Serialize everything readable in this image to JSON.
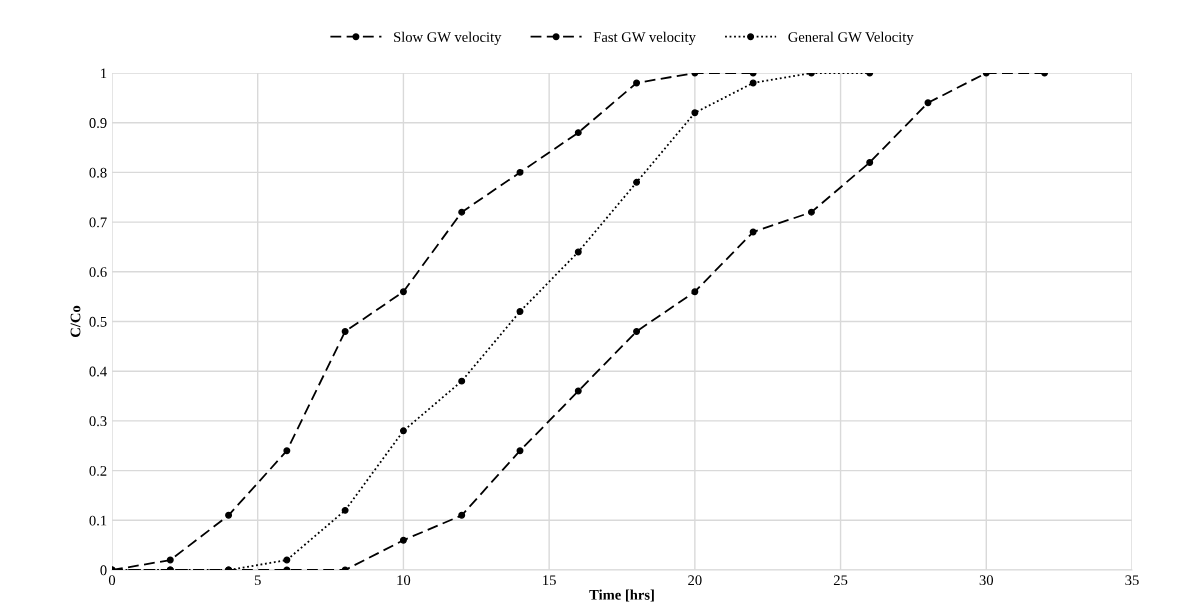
{
  "chart_data": {
    "type": "line",
    "xlabel": "Time [hrs]",
    "ylabel": "C/Co",
    "xlim": [
      0,
      35
    ],
    "xticks": [
      0,
      5,
      10,
      15,
      20,
      25,
      30,
      35
    ],
    "ylim": [
      0,
      1
    ],
    "yticks": [
      0,
      0.1,
      0.2,
      0.3,
      0.4,
      0.5,
      0.6,
      0.7,
      0.8,
      0.9,
      1
    ],
    "grid": true,
    "legend": "top",
    "marker": "circle",
    "series": [
      {
        "name": "Slow GW velocity",
        "color": "#000000",
        "line_style": "dashed",
        "x": [
          0,
          2,
          4,
          6,
          8,
          10,
          12,
          14,
          16,
          18,
          20,
          22,
          24,
          26,
          28,
          30,
          32
        ],
        "values": [
          0,
          0,
          0,
          0,
          0,
          0.06,
          0.11,
          0.24,
          0.36,
          0.48,
          0.56,
          0.68,
          0.72,
          0.82,
          0.94,
          1,
          1
        ]
      },
      {
        "name": "Fast GW velocity",
        "color": "#000000",
        "line_style": "dashed",
        "x": [
          0,
          2,
          4,
          6,
          8,
          10,
          12,
          14,
          16,
          18,
          20,
          22
        ],
        "values": [
          0,
          0.02,
          0.11,
          0.24,
          0.48,
          0.56,
          0.72,
          0.8,
          0.88,
          0.98,
          1,
          1
        ]
      },
      {
        "name": "General GW Velocity",
        "color": "#000000",
        "line_style": "dotted",
        "x": [
          0,
          2,
          4,
          6,
          8,
          10,
          12,
          14,
          16,
          18,
          20,
          22,
          24,
          26
        ],
        "values": [
          0,
          0,
          0,
          0.02,
          0.12,
          0.28,
          0.38,
          0.52,
          0.64,
          0.78,
          0.92,
          0.98,
          1,
          1
        ]
      }
    ]
  }
}
